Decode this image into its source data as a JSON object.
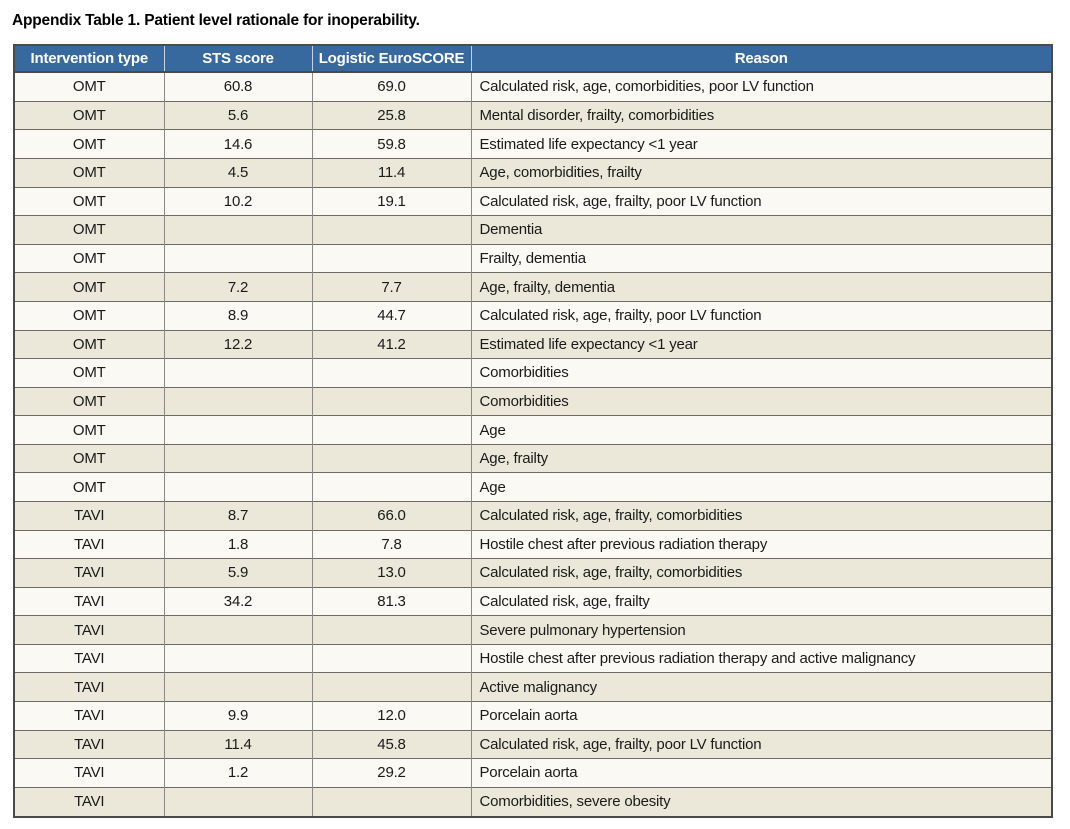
{
  "title": "Appendix Table 1. Patient level rationale for inoperability.",
  "table": {
    "columns": [
      "Intervention type",
      "STS score",
      "Logistic EuroSCORE",
      "Reason"
    ],
    "rows": [
      {
        "intervention_type": "OMT",
        "sts_score": "60.8",
        "logistic_euroscore": "69.0",
        "reason": "Calculated risk, age, comorbidities, poor LV function"
      },
      {
        "intervention_type": "OMT",
        "sts_score": "5.6",
        "logistic_euroscore": "25.8",
        "reason": "Mental disorder, frailty, comorbidities"
      },
      {
        "intervention_type": "OMT",
        "sts_score": "14.6",
        "logistic_euroscore": "59.8",
        "reason": "Estimated life expectancy <1 year"
      },
      {
        "intervention_type": "OMT",
        "sts_score": "4.5",
        "logistic_euroscore": "11.4",
        "reason": "Age, comorbidities, frailty"
      },
      {
        "intervention_type": "OMT",
        "sts_score": "10.2",
        "logistic_euroscore": "19.1",
        "reason": "Calculated risk, age, frailty, poor LV function"
      },
      {
        "intervention_type": "OMT",
        "sts_score": "",
        "logistic_euroscore": "",
        "reason": "Dementia"
      },
      {
        "intervention_type": "OMT",
        "sts_score": "",
        "logistic_euroscore": "",
        "reason": "Frailty, dementia"
      },
      {
        "intervention_type": "OMT",
        "sts_score": "7.2",
        "logistic_euroscore": "7.7",
        "reason": "Age, frailty, dementia"
      },
      {
        "intervention_type": "OMT",
        "sts_score": "8.9",
        "logistic_euroscore": "44.7",
        "reason": "Calculated risk, age, frailty, poor LV function"
      },
      {
        "intervention_type": "OMT",
        "sts_score": "12.2",
        "logistic_euroscore": "41.2",
        "reason": "Estimated life expectancy <1 year"
      },
      {
        "intervention_type": "OMT",
        "sts_score": "",
        "logistic_euroscore": "",
        "reason": "Comorbidities"
      },
      {
        "intervention_type": "OMT",
        "sts_score": "",
        "logistic_euroscore": "",
        "reason": "Comorbidities"
      },
      {
        "intervention_type": "OMT",
        "sts_score": "",
        "logistic_euroscore": "",
        "reason": "Age"
      },
      {
        "intervention_type": "OMT",
        "sts_score": "",
        "logistic_euroscore": "",
        "reason": "Age, frailty"
      },
      {
        "intervention_type": "OMT",
        "sts_score": "",
        "logistic_euroscore": "",
        "reason": "Age"
      },
      {
        "intervention_type": "TAVI",
        "sts_score": "8.7",
        "logistic_euroscore": "66.0",
        "reason": "Calculated risk, age, frailty, comorbidities"
      },
      {
        "intervention_type": "TAVI",
        "sts_score": "1.8",
        "logistic_euroscore": "7.8",
        "reason": "Hostile chest after previous radiation therapy"
      },
      {
        "intervention_type": "TAVI",
        "sts_score": "5.9",
        "logistic_euroscore": "13.0",
        "reason": "Calculated risk, age, frailty, comorbidities"
      },
      {
        "intervention_type": "TAVI",
        "sts_score": "34.2",
        "logistic_euroscore": "81.3",
        "reason": "Calculated risk, age, frailty"
      },
      {
        "intervention_type": "TAVI",
        "sts_score": "",
        "logistic_euroscore": "",
        "reason": "Severe pulmonary hypertension"
      },
      {
        "intervention_type": "TAVI",
        "sts_score": "",
        "logistic_euroscore": "",
        "reason": "Hostile chest after previous radiation therapy and active malignancy"
      },
      {
        "intervention_type": "TAVI",
        "sts_score": "",
        "logistic_euroscore": "",
        "reason": "Active malignancy"
      },
      {
        "intervention_type": "TAVI",
        "sts_score": "9.9",
        "logistic_euroscore": "12.0",
        "reason": "Porcelain aorta"
      },
      {
        "intervention_type": "TAVI",
        "sts_score": "11.4",
        "logistic_euroscore": "45.8",
        "reason": "Calculated risk, age, frailty, poor LV function"
      },
      {
        "intervention_type": "TAVI",
        "sts_score": "1.2",
        "logistic_euroscore": "29.2",
        "reason": "Porcelain aorta"
      },
      {
        "intervention_type": "TAVI",
        "sts_score": "",
        "logistic_euroscore": "",
        "reason": "Comorbidities, severe obesity"
      }
    ]
  },
  "colors": {
    "header_bg": "#38699e",
    "header_text": "#ffffff",
    "row_white_bg": "#faf9f4",
    "row_beige_bg": "#ece8d9",
    "border_outer": "#4a4a49",
    "text_color": "#1a1a1a"
  }
}
